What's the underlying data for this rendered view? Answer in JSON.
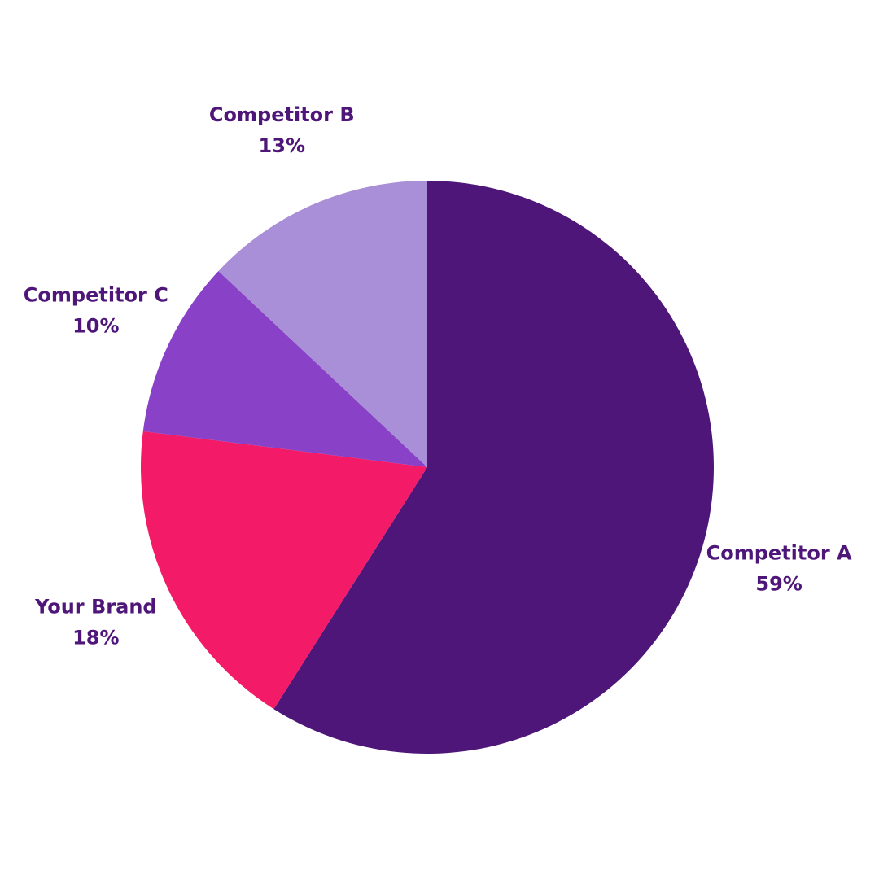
{
  "chart_data": {
    "type": "pie",
    "categories": [
      "Competitor A",
      "Your Brand",
      "Competitor C",
      "Competitor B"
    ],
    "values": [
      59,
      18,
      10,
      13
    ],
    "value_labels": [
      "59%",
      "18%",
      "10%",
      "13%"
    ],
    "colors": [
      "#4e1679",
      "#f31a67",
      "#8841c7",
      "#a98fd7"
    ],
    "label_color": "#4e1679"
  }
}
